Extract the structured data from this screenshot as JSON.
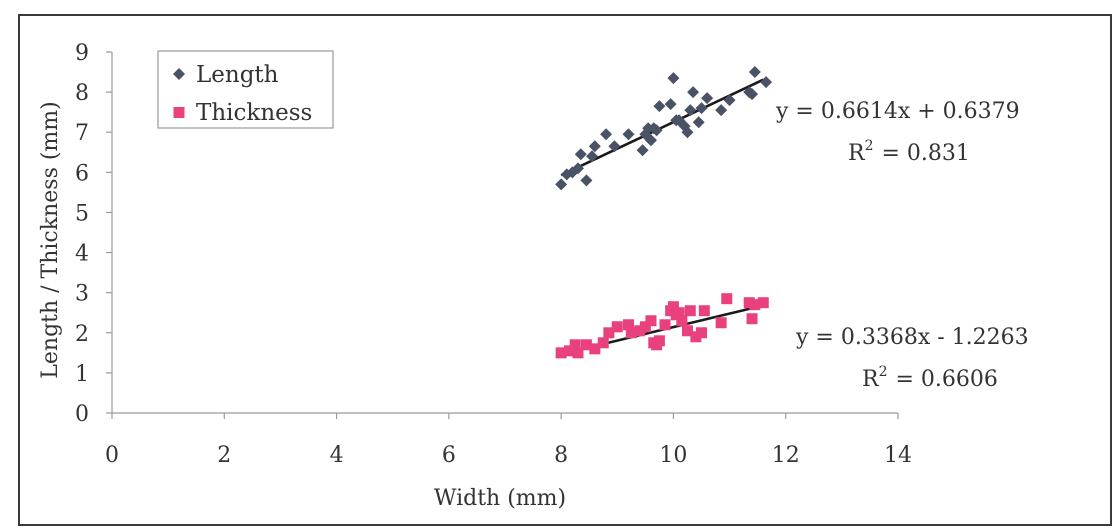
{
  "chart_data": {
    "type": "scatter",
    "title": "",
    "xlabel": "Width (mm)",
    "ylabel": "Length / Thickness (mm)",
    "xlim": [
      0,
      14
    ],
    "ylim": [
      0,
      9
    ],
    "xticks": [
      "0",
      "2",
      "4",
      "6",
      "8",
      "10",
      "12",
      "14"
    ],
    "yticks": [
      "0",
      "1",
      "2",
      "3",
      "4",
      "5",
      "6",
      "7",
      "8",
      "9"
    ],
    "grid": false,
    "legend_position": "top-left",
    "series": [
      {
        "name": "Length",
        "marker": "diamond",
        "color": "#4a5266",
        "points": [
          [
            8.0,
            5.7
          ],
          [
            8.1,
            5.95
          ],
          [
            8.2,
            6.0
          ],
          [
            8.3,
            6.1
          ],
          [
            8.35,
            6.45
          ],
          [
            8.45,
            5.8
          ],
          [
            8.55,
            6.4
          ],
          [
            8.6,
            6.65
          ],
          [
            8.8,
            6.95
          ],
          [
            8.95,
            6.65
          ],
          [
            9.2,
            6.95
          ],
          [
            9.45,
            6.55
          ],
          [
            9.5,
            6.95
          ],
          [
            9.55,
            7.1
          ],
          [
            9.6,
            6.8
          ],
          [
            9.65,
            7.1
          ],
          [
            9.7,
            7.05
          ],
          [
            9.75,
            7.65
          ],
          [
            9.95,
            7.7
          ],
          [
            10.0,
            8.35
          ],
          [
            10.05,
            7.3
          ],
          [
            10.1,
            7.3
          ],
          [
            10.2,
            7.15
          ],
          [
            10.25,
            7.0
          ],
          [
            10.3,
            7.55
          ],
          [
            10.35,
            8.0
          ],
          [
            10.45,
            7.25
          ],
          [
            10.5,
            7.6
          ],
          [
            10.6,
            7.85
          ],
          [
            10.85,
            7.55
          ],
          [
            11.0,
            7.8
          ],
          [
            11.35,
            8.0
          ],
          [
            11.4,
            7.95
          ],
          [
            11.45,
            8.5
          ],
          [
            11.65,
            8.25
          ]
        ],
        "trendline": {
          "slope": 0.6614,
          "intercept": 0.6379,
          "x_range": [
            8.0,
            11.6
          ]
        },
        "equation": "y = 0.6614x + 0.6379",
        "r2_label": "R",
        "r2_exp": "2",
        "r2_value": "= 0.831"
      },
      {
        "name": "Thickness",
        "marker": "square",
        "color": "#e8417e",
        "points": [
          [
            8.0,
            1.5
          ],
          [
            8.15,
            1.55
          ],
          [
            8.25,
            1.7
          ],
          [
            8.3,
            1.5
          ],
          [
            8.45,
            1.7
          ],
          [
            8.6,
            1.6
          ],
          [
            8.75,
            1.75
          ],
          [
            8.85,
            2.0
          ],
          [
            9.0,
            2.15
          ],
          [
            9.2,
            2.2
          ],
          [
            9.25,
            2.0
          ],
          [
            9.4,
            2.05
          ],
          [
            9.5,
            2.15
          ],
          [
            9.6,
            2.3
          ],
          [
            9.65,
            1.75
          ],
          [
            9.7,
            1.7
          ],
          [
            9.75,
            1.8
          ],
          [
            9.85,
            2.2
          ],
          [
            9.95,
            2.55
          ],
          [
            10.0,
            2.65
          ],
          [
            10.05,
            2.45
          ],
          [
            10.1,
            2.5
          ],
          [
            10.15,
            2.3
          ],
          [
            10.25,
            2.05
          ],
          [
            10.3,
            2.55
          ],
          [
            10.4,
            1.9
          ],
          [
            10.5,
            2.0
          ],
          [
            10.55,
            2.55
          ],
          [
            10.85,
            2.25
          ],
          [
            10.95,
            2.85
          ],
          [
            11.35,
            2.75
          ],
          [
            11.4,
            2.35
          ],
          [
            11.45,
            2.7
          ],
          [
            11.6,
            2.75
          ]
        ],
        "trendline": {
          "slope": 0.3368,
          "intercept": -1.2263,
          "x_range": [
            8.0,
            11.6
          ]
        },
        "equation": "y = 0.3368x - 1.2263",
        "r2_label": "R",
        "r2_exp": "2",
        "r2_value": "= 0.6606"
      }
    ]
  }
}
